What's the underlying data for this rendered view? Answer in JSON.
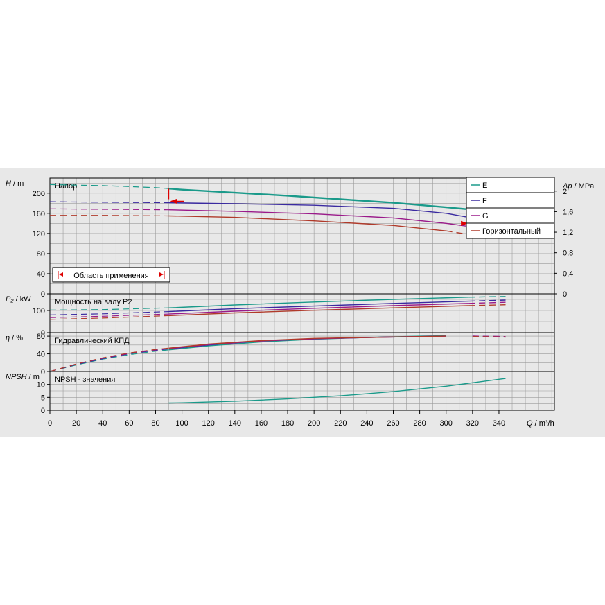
{
  "chart_data": [
    {
      "id": "head",
      "type": "line",
      "title": "Напор",
      "ylabel_var": "H",
      "ylabel_unit": "m",
      "y2label_var": "Δp",
      "y2label_unit": "MPa",
      "ylim": [
        0,
        230
      ],
      "y2lim": [
        0,
        2.253
      ],
      "yticks": [
        0,
        40,
        80,
        120,
        160,
        200
      ],
      "y2ticks": [
        "0",
        "0,4",
        "0,8",
        "1,2",
        "1,6",
        "2"
      ],
      "y2tick_values": [
        0,
        0.4,
        0.8,
        1.2,
        1.6,
        2
      ],
      "series": [
        {
          "name": "E",
          "color": "#1a9a8a",
          "x": [
            0,
            20,
            40,
            60,
            80,
            90,
            100,
            140,
            180,
            220,
            260,
            300,
            317
          ],
          "y": [
            217,
            216,
            215,
            213,
            211,
            209,
            207,
            201,
            195,
            188,
            181,
            172,
            168
          ],
          "dash_below": 90,
          "dash_above": 317
        },
        {
          "name": "F",
          "color": "#3a2aa0",
          "x": [
            0,
            40,
            90,
            140,
            200,
            260,
            300,
            317
          ],
          "y": [
            183,
            182,
            181,
            179,
            176,
            170,
            160,
            152
          ],
          "dash_below": 90,
          "dash_above": 317
        },
        {
          "name": "G",
          "color": "#9a1a8a",
          "x": [
            0,
            40,
            90,
            140,
            200,
            260,
            300,
            317
          ],
          "y": [
            169,
            168,
            167,
            164,
            159,
            151,
            140,
            134
          ],
          "dash_below": 90,
          "dash_above": 317
        },
        {
          "name": "Горизонтальный",
          "color": "#b03a2a",
          "x": [
            0,
            40,
            90,
            140,
            200,
            260,
            300,
            317
          ],
          "y": [
            156,
            156,
            155,
            152,
            145,
            136,
            125,
            118
          ],
          "dash_below": 90,
          "dash_above": 300
        }
      ],
      "application_range": {
        "label": "Область применения",
        "q_min": 90,
        "q_max": 317
      }
    },
    {
      "id": "power",
      "type": "line",
      "title": "Мощность на валу P2",
      "ylabel_var": "P₂",
      "ylabel_unit": "kW",
      "ylim": [
        0,
        175
      ],
      "yticks": [
        0,
        100
      ],
      "series": [
        {
          "name": "E",
          "color": "#1a9a8a",
          "x": [
            0,
            40,
            90,
            140,
            200,
            260,
            317,
            345
          ],
          "y": [
            102,
            104,
            112,
            125,
            138,
            150,
            160,
            163
          ],
          "dash_below": 90,
          "dash_above": 317
        },
        {
          "name": "F",
          "color": "#3a2aa0",
          "x": [
            0,
            40,
            90,
            140,
            200,
            260,
            317,
            345
          ],
          "y": [
            80,
            85,
            95,
            108,
            120,
            132,
            142,
            147
          ],
          "dash_below": 90,
          "dash_above": 317
        },
        {
          "name": "G",
          "color": "#9a1a8a",
          "x": [
            0,
            40,
            90,
            140,
            200,
            260,
            317,
            345
          ],
          "y": [
            68,
            74,
            84,
            97,
            110,
            122,
            132,
            137
          ],
          "dash_below": 90,
          "dash_above": 317
        },
        {
          "name": "Горизонтальный",
          "color": "#b03a2a",
          "x": [
            0,
            40,
            90,
            140,
            200,
            260,
            317,
            345
          ],
          "y": [
            60,
            66,
            77,
            89,
            101,
            112,
            122,
            126
          ],
          "dash_below": 90,
          "dash_above": 317
        }
      ]
    },
    {
      "id": "efficiency",
      "type": "line",
      "title": "Гидравлический КПД",
      "ylabel_var": "η",
      "ylabel_unit": "%",
      "ylim": [
        0,
        88
      ],
      "yticks": [
        0,
        40,
        80
      ],
      "series": [
        {
          "name": "E",
          "color": "#1a9a8a",
          "x": [
            0,
            20,
            40,
            60,
            80,
            90,
            120,
            160,
            200,
            240,
            280,
            300,
            320,
            345
          ],
          "y": [
            0,
            15,
            28,
            38,
            46,
            49,
            58,
            67,
            73,
            77,
            80,
            81,
            80,
            78
          ],
          "dash_below": 90,
          "dash_above": 317
        },
        {
          "name": "F",
          "color": "#3a2aa0",
          "x": [
            0,
            20,
            40,
            60,
            80,
            90,
            120,
            160,
            200,
            240,
            280,
            300,
            320,
            345
          ],
          "y": [
            0,
            16,
            29,
            40,
            48,
            51,
            60,
            69,
            74,
            77,
            79,
            80,
            80,
            79
          ],
          "dash_below": 90,
          "dash_above": 317
        },
        {
          "name": "G",
          "color": "#9a1a8a",
          "x": [
            0,
            20,
            40,
            60,
            80,
            90,
            120,
            160,
            200,
            240,
            280,
            300,
            320,
            345
          ],
          "y": [
            0,
            17,
            30,
            41,
            49,
            52,
            61,
            69,
            74,
            77,
            79,
            80,
            80,
            79
          ],
          "dash_below": 90,
          "dash_above": 317
        },
        {
          "name": "Горизонтальный",
          "color": "#b03a2a",
          "x": [
            0,
            20,
            40,
            60,
            80,
            90,
            120,
            160,
            200,
            240,
            280,
            300,
            320,
            345
          ],
          "y": [
            0,
            17,
            31,
            42,
            50,
            53,
            62,
            70,
            75,
            77,
            79,
            80,
            79,
            78
          ],
          "dash_below": 90,
          "dash_above": 317
        }
      ]
    },
    {
      "id": "npsh",
      "type": "line",
      "title": "NPSH - значения",
      "ylabel_var": "NPSH",
      "ylabel_unit": "m",
      "ylim": [
        0,
        15
      ],
      "yticks": [
        0,
        5,
        10
      ],
      "series": [
        {
          "name": "E",
          "color": "#1a9a8a",
          "x": [
            90,
            100,
            140,
            180,
            220,
            260,
            300,
            345
          ],
          "y": [
            2.8,
            2.9,
            3.5,
            4.4,
            5.6,
            7.2,
            9.3,
            12.3
          ]
        }
      ]
    }
  ],
  "x_axis": {
    "label_var": "Q",
    "label_unit": "m³/h",
    "xlim": [
      0,
      382
    ],
    "ticks": [
      0,
      20,
      40,
      60,
      80,
      100,
      120,
      140,
      160,
      180,
      200,
      220,
      240,
      260,
      280,
      300,
      320,
      340
    ]
  },
  "legend": {
    "placement": "top-right",
    "items": [
      {
        "label": "E",
        "color": "#1a9a8a"
      },
      {
        "label": "F",
        "color": "#3a2aa0"
      },
      {
        "label": "G",
        "color": "#9a1a8a"
      },
      {
        "label": "Горизонтальный",
        "color": "#b03a2a"
      }
    ]
  },
  "colors": {
    "panel_bg": "#e8e8e8",
    "grid": "#9a9a9a",
    "range_marker": "#dd0000"
  }
}
